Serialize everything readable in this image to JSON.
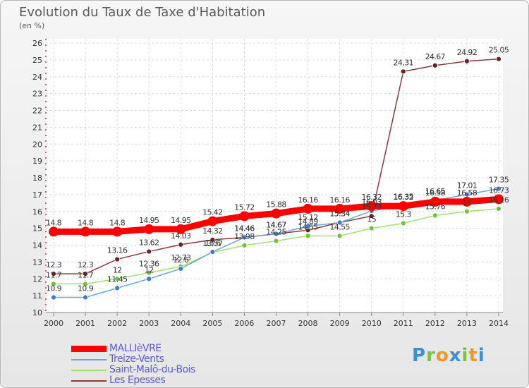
{
  "title": "Evolution du Taux de Taxe d'Habitation",
  "subtitle": "(en %)",
  "logo_letters": [
    {
      "ch": "P",
      "color": "#3a8fd8"
    },
    {
      "ch": "r",
      "color": "#7cc242"
    },
    {
      "ch": "o",
      "color": "#f7941d"
    },
    {
      "ch": "x",
      "color": "#3a8fd8"
    },
    {
      "ch": "i",
      "color": "#7cc242"
    },
    {
      "ch": "t",
      "color": "#f7941d"
    },
    {
      "ch": "i",
      "color": "#3a8fd8"
    }
  ],
  "chart_data": {
    "type": "line",
    "x": [
      "2000",
      "2001",
      "2002",
      "2003",
      "2004",
      "2005",
      "2006",
      "2007",
      "2008",
      "2009",
      "2010",
      "2011",
      "2012",
      "2013",
      "2014"
    ],
    "ylim": [
      10,
      26
    ],
    "yticks": [
      "10",
      "11",
      "12",
      "13",
      "14",
      "15",
      "16",
      "17",
      "18",
      "19",
      "20",
      "21",
      "22",
      "23",
      "24",
      "25",
      "26"
    ],
    "grid": true,
    "legend_position": "bottom-left",
    "series": [
      {
        "name": "MALLIèVRE",
        "color": "#ff0000",
        "dot": "#ff0000",
        "width": 9,
        "dot_r": 7,
        "values": [
          14.8,
          14.8,
          14.8,
          14.95,
          14.95,
          15.42,
          15.72,
          15.88,
          16.16,
          16.16,
          16.32,
          16.32,
          16.58,
          16.58,
          16.73
        ],
        "labels": [
          "14.8",
          "14.8",
          "14.8",
          "14.95",
          "14.95",
          "15.42",
          "15.72",
          "15.88",
          "16.16",
          "16.16",
          "16.32",
          "16.32",
          "16.58",
          "16.58",
          "16.73"
        ]
      },
      {
        "name": "Treize-Vents",
        "color": "#6aa8dd",
        "dot": "#3a7cc9",
        "width": 1.5,
        "dot_r": 3.5,
        "values": [
          10.9,
          10.9,
          11.45,
          12,
          12.6,
          13.6,
          14.46,
          14.67,
          15.12,
          15.34,
          16.03,
          16.35,
          16.65,
          17.01,
          17.35
        ],
        "labels": [
          "10.9",
          "10.9",
          "11.45",
          "12",
          "12.6",
          "13.6",
          "14.46",
          "14.67",
          "15.12",
          "15.34",
          "16.03",
          "16.35",
          "16.65",
          "17.01",
          "17.35"
        ]
      },
      {
        "name": "Saint-Malô-du-Bois",
        "color": "#a0e070",
        "dot": "#72c23c",
        "width": 1.5,
        "dot_r": 3.5,
        "values": [
          11.7,
          11.7,
          12,
          12.36,
          12.73,
          13.57,
          13.98,
          14.25,
          14.55,
          14.55,
          15,
          15.3,
          15.76,
          16,
          16.16
        ],
        "labels": [
          "11.7",
          "11.7",
          "12",
          "12.36",
          "12.73",
          "13.57",
          "13.98",
          "14.25",
          "14.55",
          "14.55",
          "15",
          "15.3",
          "15.76",
          "16",
          "16.16"
        ]
      },
      {
        "name": "Les Epesses",
        "color": "#8b3a3a",
        "dot": "#6b1f1f",
        "width": 1.5,
        "dot_r": 3.5,
        "values": [
          12.3,
          12.3,
          13.16,
          13.62,
          14.03,
          14.32,
          14.46,
          14.67,
          14.89,
          15.34,
          15.73,
          24.31,
          24.67,
          24.92,
          25.05
        ],
        "labels": [
          "12.3",
          "12.3",
          "13.16",
          "13.62",
          "14.03",
          "14.32",
          "14.46",
          "14.67",
          "14.89",
          "15.34",
          "15.73",
          "24.31",
          "24.67",
          "24.92",
          "25.05"
        ]
      }
    ]
  }
}
